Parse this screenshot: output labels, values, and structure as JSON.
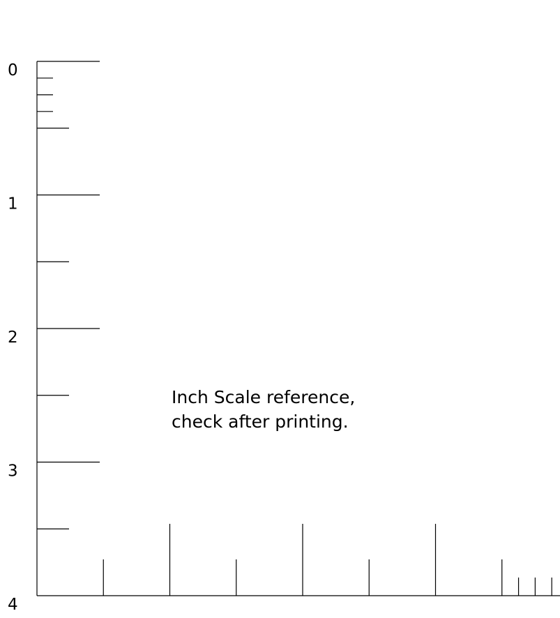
{
  "ruler": {
    "unit": "inch",
    "vertical_labels": [
      "0",
      "1",
      "2",
      "3",
      "4"
    ],
    "vertical_max": 4,
    "horizontal_max": 4,
    "line_color": "#000000"
  },
  "note": {
    "line1": "Inch Scale reference,",
    "line2": "check after printing."
  }
}
